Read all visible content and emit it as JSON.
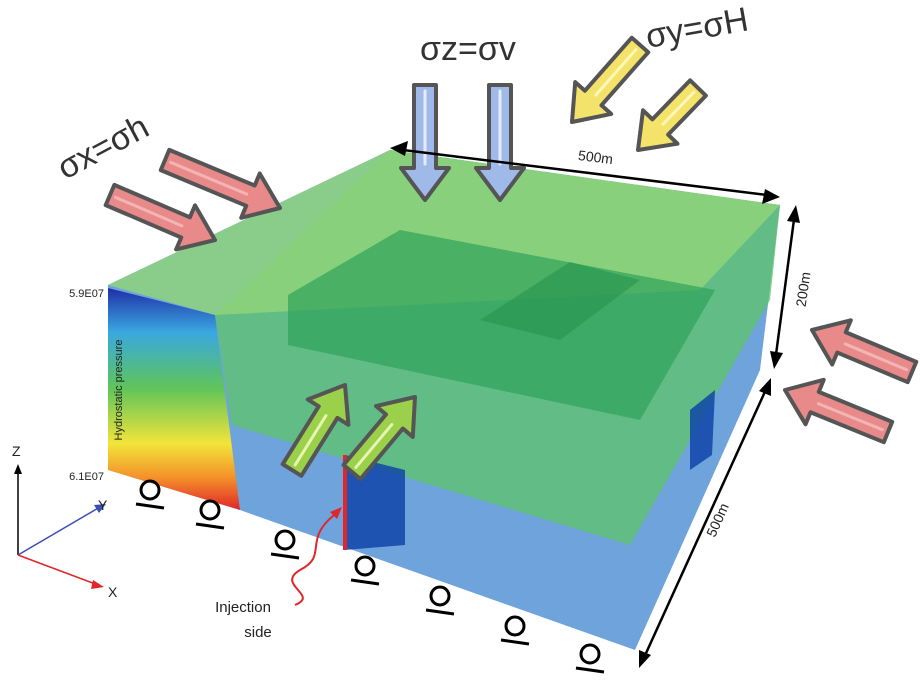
{
  "stresses": {
    "z": "σz=σv",
    "y": "σy=σH",
    "x": "σx=σh"
  },
  "dimensions": {
    "top": "500m",
    "height": "200m",
    "side": "500m"
  },
  "pressure_scale": {
    "top": "5.9E07",
    "bottom": "6.1E07",
    "label": "Hydrostatic pressure"
  },
  "axes": {
    "z": "Z",
    "y": "Y",
    "x": "X"
  },
  "injection": [
    "Injection",
    "side"
  ]
}
